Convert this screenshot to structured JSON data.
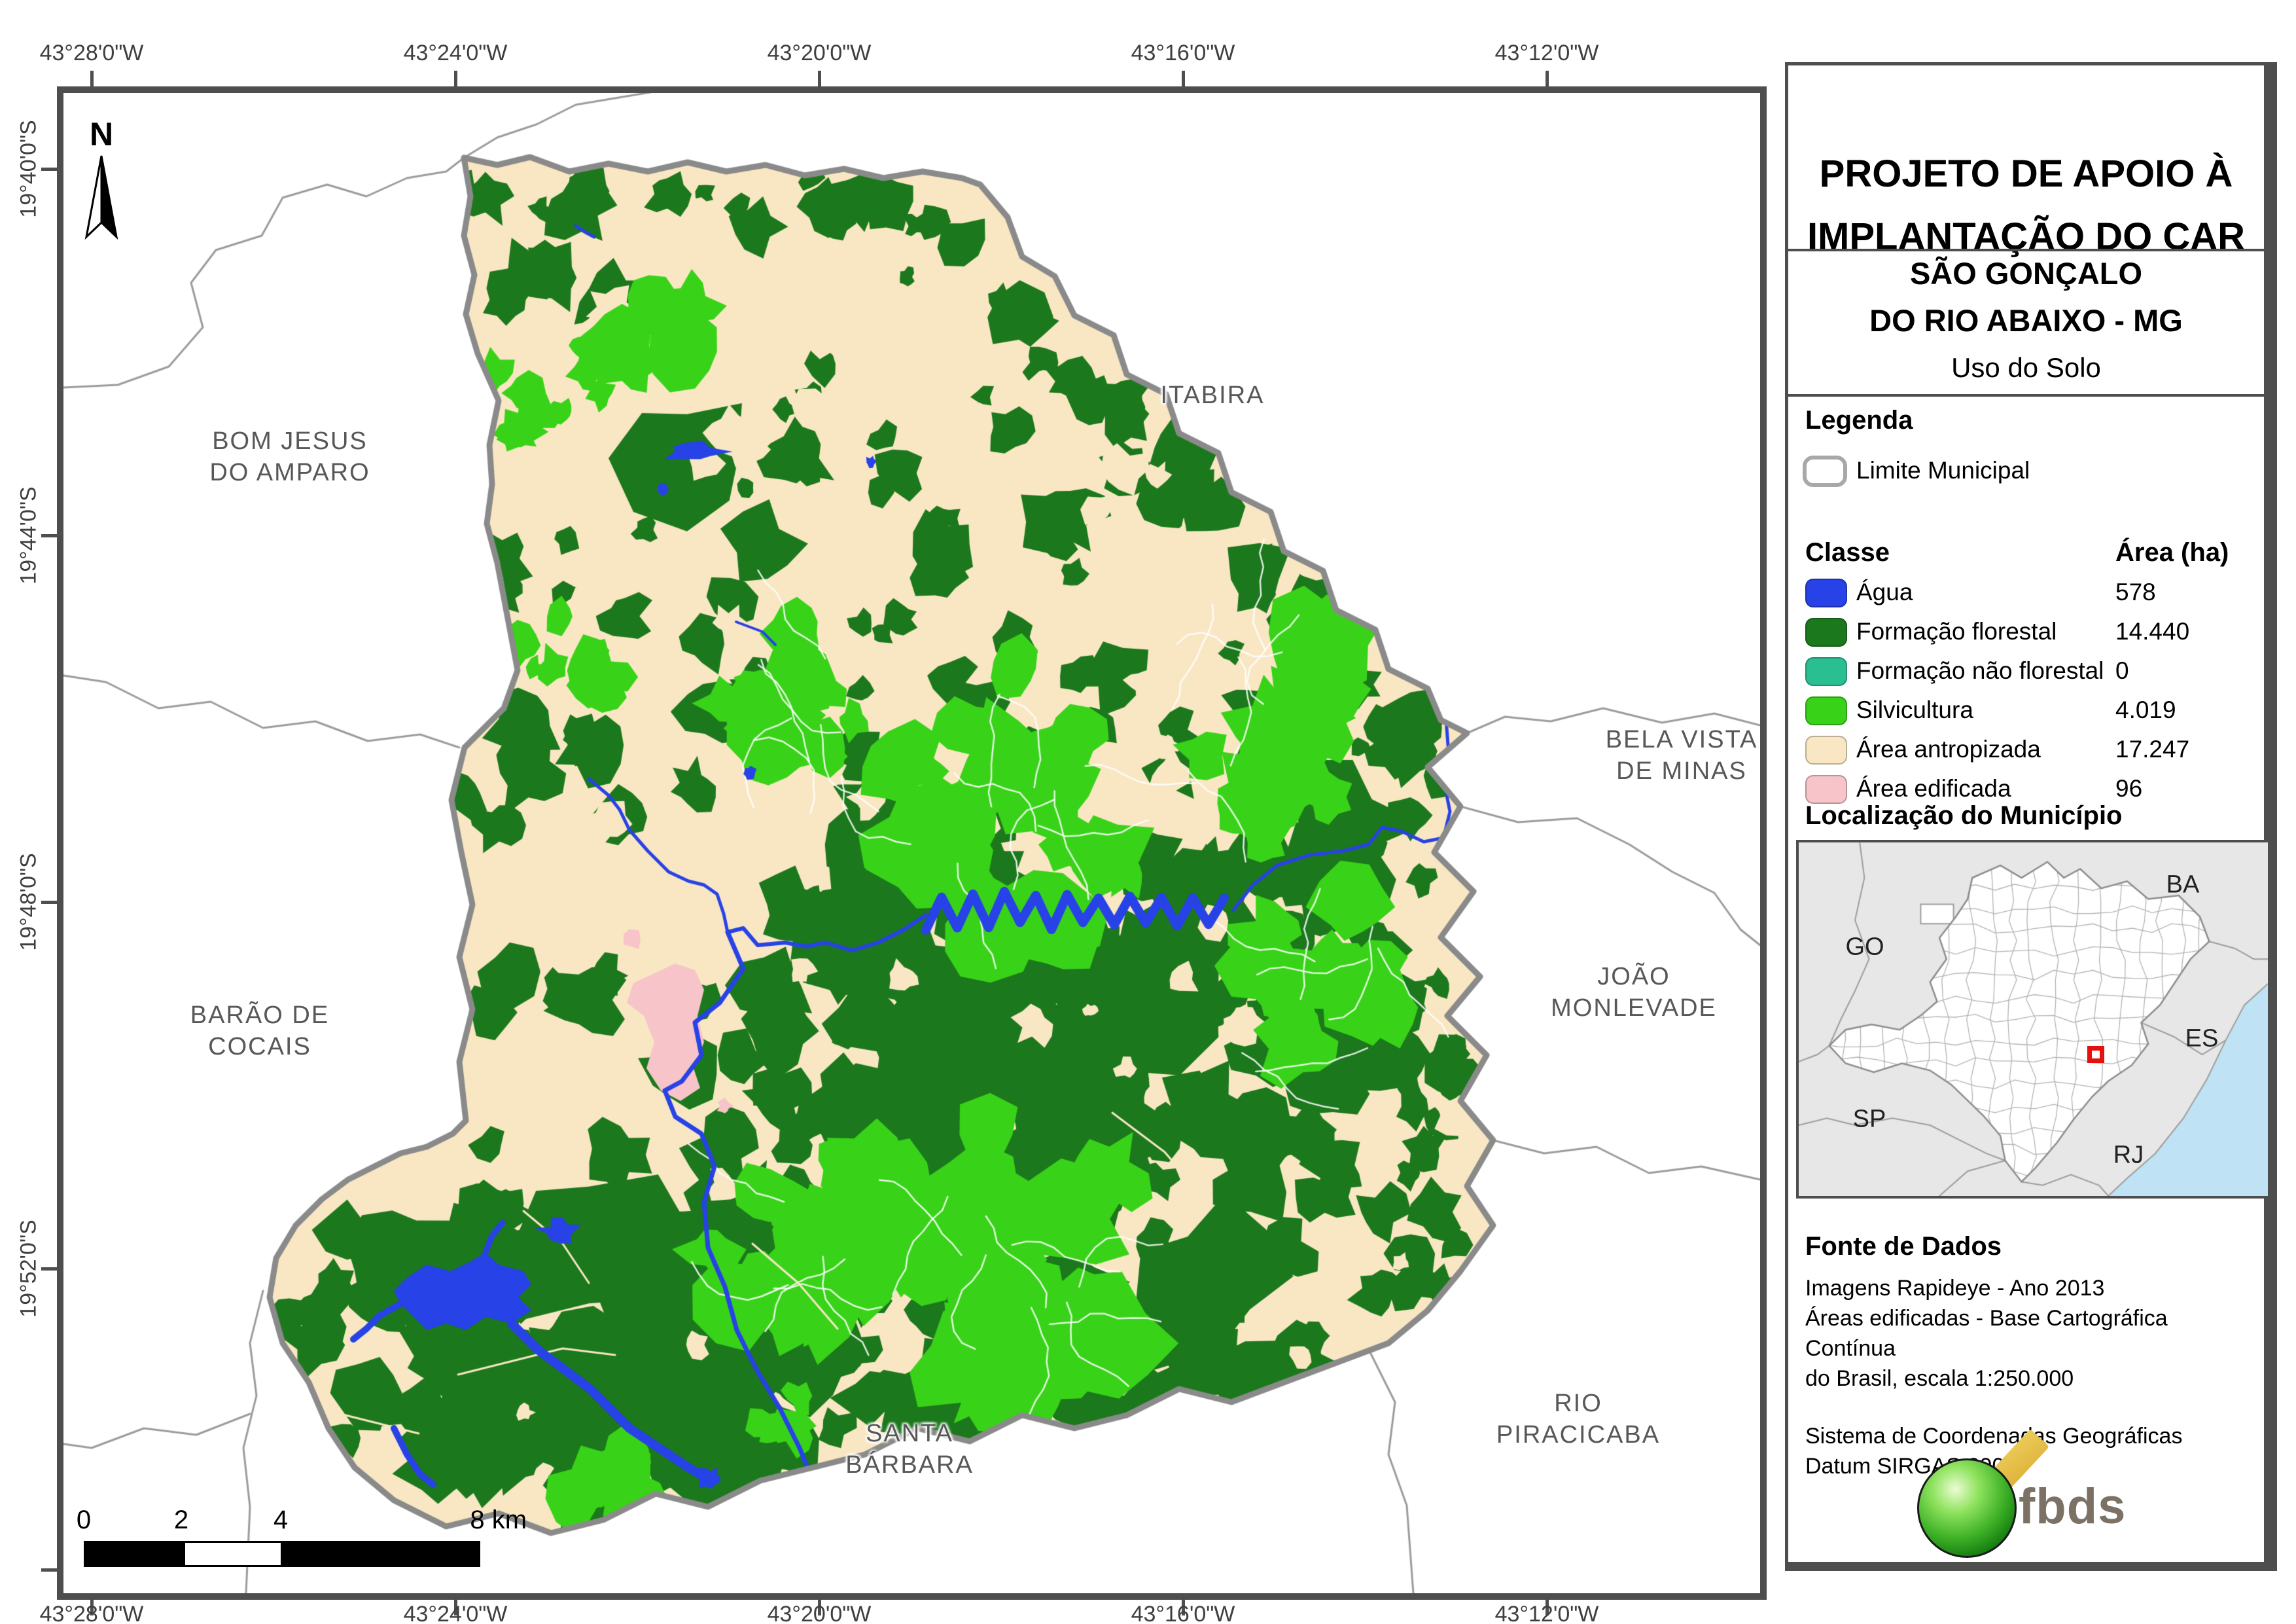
{
  "colors": {
    "frame": "#4e4e4e",
    "municipal_boundary": "#8a8a8a",
    "neighbor_boundary": "#9b9b9b",
    "water": "#2742e6",
    "forest": "#1c781c",
    "non_forest": "#2abf90",
    "silviculture": "#38d318",
    "anthropized": "#f9e7c4",
    "built": "#f7c4c9",
    "inset_land": "#e7e7e7",
    "inset_ocean": "#bfe3f4",
    "inset_state_line": "#9d9d9d",
    "marker_red": "#e8100c"
  },
  "map": {
    "north_label": "N",
    "coords_x": [
      "43°28'0\"W",
      "43°24'0\"W",
      "43°20'0\"W",
      "43°16'0\"W",
      "43°12'0\"W"
    ],
    "coords_y": [
      "19°40'0\"S",
      "19°44'0\"S",
      "19°48'0\"S",
      "19°52'0\"S"
    ],
    "scalebar_labels": [
      "0",
      "2",
      "4",
      "8 km"
    ],
    "neighbor_labels": [
      {
        "line1": "BOM JESUS",
        "line2": "DO AMPARO"
      },
      {
        "line1": "ITABIRA",
        "line2": ""
      },
      {
        "line1": "BELA VISTA",
        "line2": "DE MINAS"
      },
      {
        "line1": "JOÃO",
        "line2": "MONLEVADE"
      },
      {
        "line1": "BARÃO DE",
        "line2": "COCAIS"
      },
      {
        "line1": "SANTA",
        "line2": "BÁRBARA"
      },
      {
        "line1": "RIO",
        "line2": "PIRACICABA"
      }
    ]
  },
  "panel": {
    "title_line1": "PROJETO DE APOIO À",
    "title_line2": "IMPLANTAÇÃO DO CAR",
    "municipality_line1": "SÃO GONÇALO",
    "municipality_line2": "DO RIO ABAIXO - MG",
    "map_theme": "Uso do Solo",
    "legend": {
      "heading": "Legenda",
      "boundary_label": "Limite Municipal",
      "class_header": "Classe",
      "area_header": "Área (ha)",
      "rows": [
        {
          "label": "Água",
          "area": "578",
          "color": "#2742e6"
        },
        {
          "label": "Formação florestal",
          "area": "14.440",
          "color": "#1c781c"
        },
        {
          "label": "Formação não florestal",
          "area": "0",
          "color": "#2abf90"
        },
        {
          "label": "Silvicultura",
          "area": "4.019",
          "color": "#38d318"
        },
        {
          "label": "Área antropizada",
          "area": "17.247",
          "color": "#f9e7c4"
        },
        {
          "label": "Área edificada",
          "area": "96",
          "color": "#f7c4c9"
        }
      ]
    },
    "location": {
      "heading": "Localização do Município",
      "state_labels": [
        "GO",
        "BA",
        "ES",
        "SP",
        "RJ"
      ]
    },
    "source": {
      "heading": "Fonte de Dados",
      "lines": [
        "Imagens Rapideye - Ano 2013",
        "Áreas edificadas - Base Cartográfica Contínua",
        "do Brasil, escala 1:250.000",
        "Sistema de Coordenadas Geográficas",
        "Datum SIRGAS 2000"
      ]
    },
    "logo_text": "fbds"
  }
}
